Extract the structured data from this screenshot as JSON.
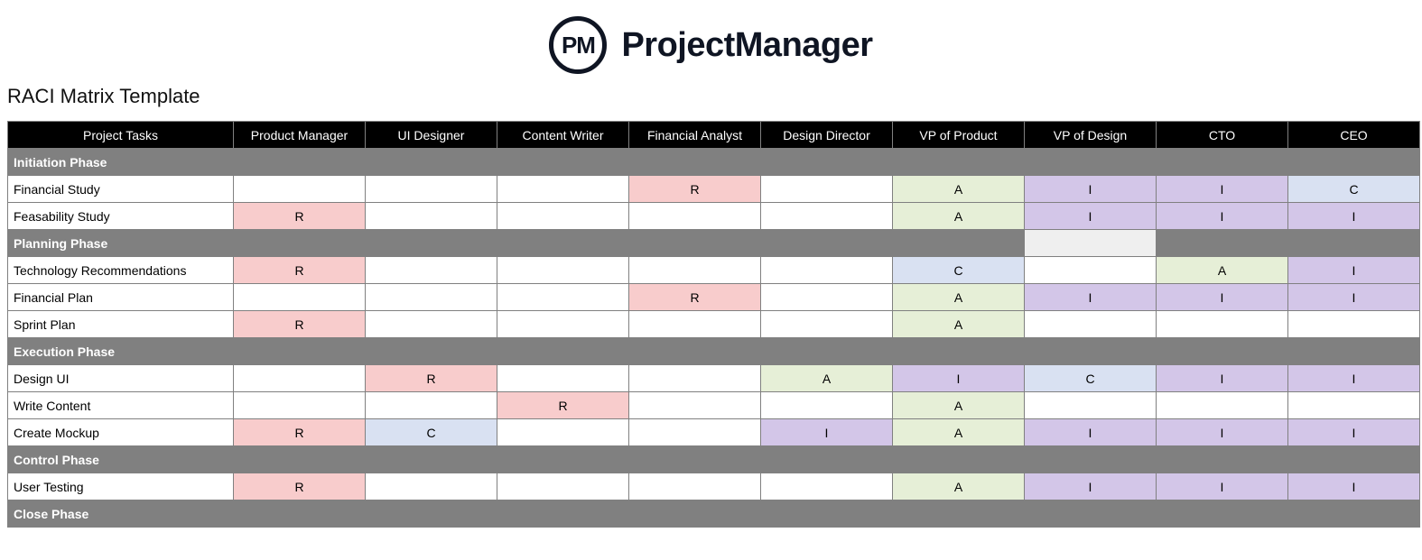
{
  "brand": {
    "icon_text": "PM",
    "name": "ProjectManager",
    "color": "#0f1523"
  },
  "title": "RACI Matrix Template",
  "columns": [
    "Project Tasks",
    "Product Manager",
    "UI Designer",
    "Content Writer",
    "Financial Analyst",
    "Design Director",
    "VP of Product",
    "VP of Design",
    "CTO",
    "CEO"
  ],
  "colors": {
    "header_bg": "#000000",
    "header_fg": "#ffffff",
    "phase_bg": "#808080",
    "phase_fg": "#ffffff",
    "border": "#808080",
    "blank": "#ffffff",
    "light_gray": "#efefef",
    "R": "#f8cccc",
    "A": "#e6efd7",
    "C": "#d9e1f2",
    "I": "#d3c6e8"
  },
  "rows": [
    {
      "type": "phase",
      "label": "Initiation Phase",
      "cells": [
        "",
        "",
        "",
        "",
        "",
        "",
        "",
        "",
        ""
      ]
    },
    {
      "type": "task",
      "label": "Financial Study",
      "cells": [
        "",
        "",
        "",
        "R",
        "",
        "A",
        "I",
        "I",
        "C"
      ]
    },
    {
      "type": "task",
      "label": "Feasability Study",
      "cells": [
        "R",
        "",
        "",
        "",
        "",
        "A",
        "I",
        "I",
        "I"
      ]
    },
    {
      "type": "phase",
      "label": "Planning Phase",
      "cells": [
        "",
        "",
        "",
        "",
        "",
        "",
        {
          "v": "",
          "bg": "light_gray"
        },
        "",
        ""
      ]
    },
    {
      "type": "task",
      "label": "Technology Recommendations",
      "cells": [
        "R",
        "",
        "",
        "",
        "",
        "C",
        "",
        "A",
        "I"
      ]
    },
    {
      "type": "task",
      "label": "Financial Plan",
      "cells": [
        "",
        "",
        "",
        "R",
        "",
        "A",
        "I",
        "I",
        "I"
      ]
    },
    {
      "type": "task",
      "label": "Sprint Plan",
      "cells": [
        "R",
        "",
        "",
        "",
        "",
        "A",
        "",
        "",
        ""
      ]
    },
    {
      "type": "phase",
      "label": "Execution Phase",
      "cells": [
        "",
        "",
        "",
        "",
        "",
        "",
        "",
        "",
        ""
      ]
    },
    {
      "type": "task",
      "label": "Design UI",
      "cells": [
        "",
        "R",
        "",
        "",
        "A",
        "I",
        "C",
        "I",
        "I"
      ]
    },
    {
      "type": "task",
      "label": "Write Content",
      "cells": [
        "",
        "",
        "R",
        "",
        "",
        "A",
        "",
        "",
        ""
      ]
    },
    {
      "type": "task",
      "label": "Create Mockup",
      "cells": [
        "R",
        "C",
        "",
        "",
        "I",
        "A",
        "I",
        "I",
        "I"
      ]
    },
    {
      "type": "phase",
      "label": "Control Phase",
      "cells": [
        "",
        "",
        "",
        "",
        "",
        "",
        "",
        "",
        ""
      ]
    },
    {
      "type": "task",
      "label": "User Testing",
      "cells": [
        "R",
        "",
        "",
        "",
        "",
        "A",
        "I",
        "I",
        "I"
      ]
    },
    {
      "type": "phase",
      "label": "Close Phase",
      "cells": [
        "",
        "",
        "",
        "",
        "",
        "",
        "",
        "",
        ""
      ]
    }
  ]
}
